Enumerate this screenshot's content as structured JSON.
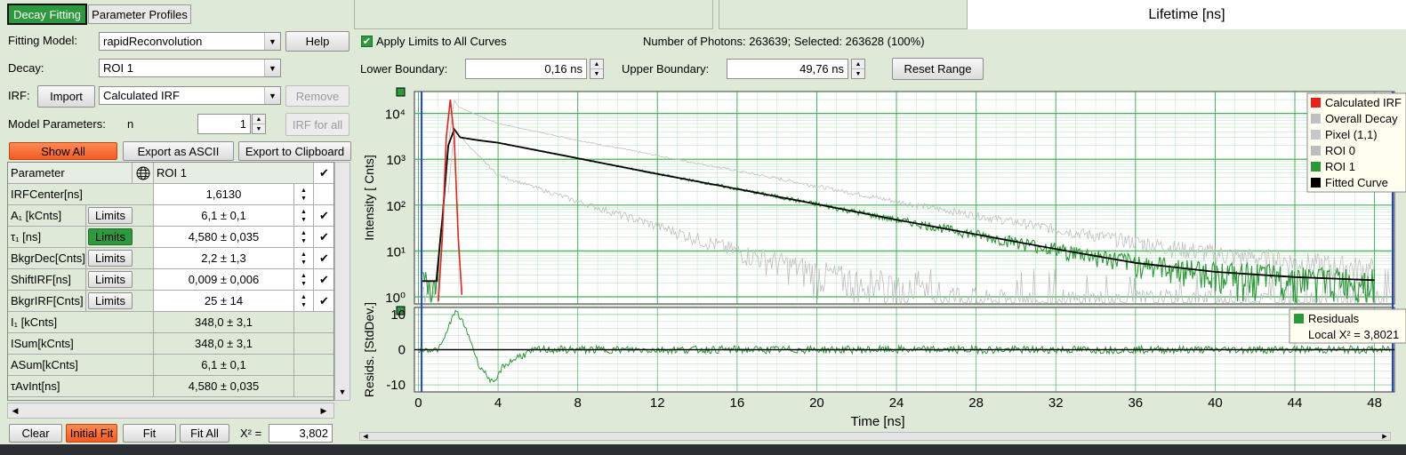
{
  "tabs": {
    "decay_fitting": "Decay Fitting",
    "parameter_profiles": "Parameter Profiles"
  },
  "header": {
    "lifetime": "Lifetime [ns]"
  },
  "form": {
    "fitting_model_label": "Fitting Model:",
    "fitting_model_value": "rapidReconvolution",
    "help": "Help",
    "decay_label": "Decay:",
    "decay_value": "ROI 1",
    "irf_label": "IRF:",
    "import": "Import",
    "irf_value": "Calculated IRF",
    "remove": "Remove",
    "model_params_label": "Model Parameters:",
    "n_label": "n",
    "n_value": "1",
    "irf_for_all": "IRF for all"
  },
  "actions": {
    "show_all": "Show All",
    "export_ascii": "Export as ASCII",
    "export_clipboard": "Export to Clipboard"
  },
  "table": {
    "header_param": "Parameter",
    "header_roi": "ROI 1",
    "limits": "Limits",
    "rows": [
      {
        "name": "IRFCenter[ns]",
        "value": "1,6130",
        "limits": false,
        "check": false
      },
      {
        "name": "A₁ [kCnts]",
        "value": "6,1 ± 0,1",
        "limits": true,
        "check": true
      },
      {
        "name": "τ₁ [ns]",
        "value": "4,580 ± 0,035",
        "limits": true,
        "check": true,
        "green": true
      },
      {
        "name": "BkgrDec[Cnts]",
        "value": "2,2 ± 1,3",
        "limits": true,
        "check": true
      },
      {
        "name": "ShiftIRF[ns]",
        "value": "0,009 ± 0,006",
        "limits": true,
        "check": true
      },
      {
        "name": "BkgrIRF[Cnts]",
        "value": "25 ± 14",
        "limits": true,
        "check": true
      },
      {
        "name": "I₁ [kCnts]",
        "value": "348,0 ± 3,1",
        "limits": false,
        "check": false
      },
      {
        "name": "ISum[kCnts]",
        "value": "348,0 ± 3,1",
        "limits": false,
        "check": false
      },
      {
        "name": "ASum[kCnts]",
        "value": "6,1 ± 0,1",
        "limits": false,
        "check": false
      },
      {
        "name": "τAvInt[ns]",
        "value": "4,580 ± 0,035",
        "limits": false,
        "check": false
      }
    ]
  },
  "bottom": {
    "clear": "Clear",
    "initial_fit": "Initial Fit",
    "fit": "Fit",
    "fit_all": "Fit All",
    "chi_label": "X² =",
    "chi_value": "3,802"
  },
  "range": {
    "apply_limits": "Apply Limits to All Curves",
    "photons": "Number of Photons: 263639; Selected: 263628 (100%)",
    "lower_label": "Lower Boundary:",
    "lower_value": "0,16 ns",
    "upper_label": "Upper Boundary:",
    "upper_value": "49,76 ns",
    "reset": "Reset Range"
  },
  "colors": {
    "irf": "#e8201c",
    "overall": "#c0c0c0",
    "pixel": "#c8c8c8",
    "roi0": "#bdbdbd",
    "roi1": "#2a9a36",
    "fit": "#000000",
    "plot_bg": "#ffffff",
    "grid": "#33aa44"
  },
  "chart_data": [
    {
      "type": "line",
      "xlabel": "Time [ns]",
      "ylabel": "Intensity [ Cnts]",
      "yscale": "log",
      "xlim": [
        -0.2,
        49
      ],
      "ylim": [
        0.7,
        30000
      ],
      "x_ticks": [
        "0",
        "4",
        "8",
        "12",
        "16",
        "20",
        "24",
        "28",
        "32",
        "36",
        "40",
        "44",
        "48"
      ],
      "y_ticks": [
        "10⁰",
        "10¹",
        "10²",
        "10³",
        "10⁴"
      ],
      "legend": [
        "Calculated IRF",
        "Overall Decay",
        "Pixel (1,1)",
        "ROI 0",
        "ROI 1",
        "Fitted Curve"
      ],
      "legend_position": "top-right",
      "series": [
        {
          "name": "Calculated IRF",
          "x": [
            1.0,
            1.2,
            1.4,
            1.6,
            1.8,
            2.0,
            2.2
          ],
          "y": [
            0.8,
            20,
            3000,
            20000,
            3000,
            20,
            0.8
          ]
        },
        {
          "name": "Fitted Curve",
          "x": [
            0.2,
            0.9,
            1.2,
            1.5,
            1.8,
            2.1,
            3.0,
            4,
            8,
            12,
            16,
            20,
            24,
            28,
            32,
            36,
            40,
            44,
            48
          ],
          "y": [
            2.2,
            2.2,
            50,
            2000,
            4500,
            3000,
            2600,
            2300,
            1050,
            480,
            225,
            105,
            48,
            23,
            11,
            5.5,
            3.5,
            2.7,
            2.3
          ]
        },
        {
          "name": "Overall Decay",
          "x": [
            0.2,
            1.0,
            1.5,
            1.8,
            2.0,
            3,
            4,
            8,
            12,
            16,
            20,
            24,
            28,
            32,
            36,
            40,
            44,
            48
          ],
          "y": [
            1.5,
            1.5,
            2000,
            20000,
            14000,
            9000,
            6000,
            2600,
            1200,
            560,
            260,
            120,
            60,
            30,
            16,
            9,
            6,
            4
          ]
        },
        {
          "name": "ROI 0",
          "x": [
            1.5,
            1.8,
            2.0,
            3,
            4,
            8,
            12,
            16,
            20,
            24,
            28
          ],
          "y": [
            200,
            4000,
            3500,
            1200,
            450,
            120,
            35,
            10,
            3.5,
            1.5,
            0.9
          ]
        }
      ]
    },
    {
      "type": "line",
      "xlabel": "Time [ns]",
      "ylabel": "Resids. [StdDev.]",
      "ylim": [
        -12,
        12
      ],
      "y_ticks": [
        "-10",
        "0",
        "10"
      ],
      "legend": [
        "Residuals"
      ],
      "annotation": "Local X² = 3,8021",
      "series": [
        {
          "name": "Residuals",
          "x": [
            0,
            1,
            1.3,
            1.6,
            1.9,
            2.2,
            2.6,
            3.0,
            3.4,
            3.8,
            4.2,
            5,
            6,
            48
          ],
          "y": [
            0,
            0,
            3,
            8,
            11,
            8,
            3,
            -4,
            -7,
            -10,
            -5,
            -2,
            0,
            0
          ]
        }
      ]
    }
  ]
}
